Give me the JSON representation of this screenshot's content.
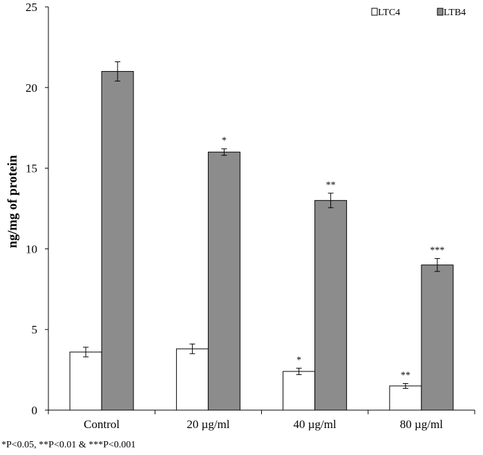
{
  "chart_data": {
    "type": "bar",
    "title": "",
    "xlabel": "",
    "ylabel": "ng/mg  of protein",
    "ylim": [
      0,
      25
    ],
    "yticks": [
      0,
      5,
      10,
      15,
      20,
      25
    ],
    "grid": false,
    "legend_position": "top-right",
    "categories": [
      "Control",
      "20 µg/ml",
      "40 µg/ml",
      "80 µg/ml"
    ],
    "series": [
      {
        "name": "LTC4",
        "color": "#ffffff",
        "values": [
          3.6,
          3.8,
          2.4,
          1.5
        ],
        "errors": [
          0.3,
          0.3,
          0.2,
          0.15
        ],
        "annotations": [
          "",
          "",
          "*",
          "**"
        ]
      },
      {
        "name": "LTB4",
        "color": "#8c8c8c",
        "values": [
          21.0,
          16.0,
          13.0,
          9.0
        ],
        "errors": [
          0.6,
          0.2,
          0.45,
          0.4
        ],
        "annotations": [
          "",
          "*",
          "**",
          "***"
        ]
      }
    ]
  },
  "footnote": "*P<0.05, **P<0.01 & ***P<0.001"
}
